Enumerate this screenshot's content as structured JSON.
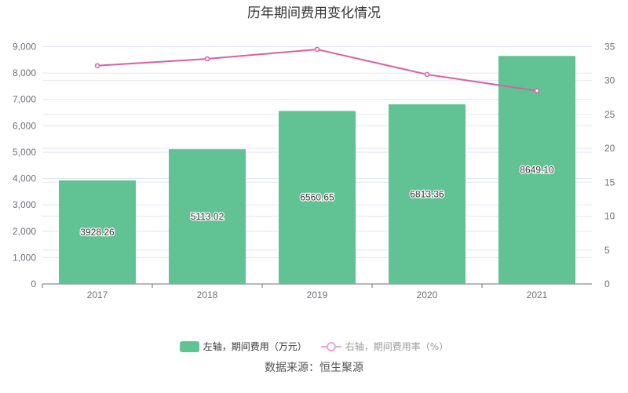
{
  "colors": {
    "bar": "#61c394",
    "line": "#d75fa8",
    "grid": "#e0e6f1",
    "axis_text": "#6e7079"
  },
  "chart_data": {
    "type": "bar+line",
    "title": "历年期间费用变化情况",
    "categories": [
      "2017",
      "2018",
      "2019",
      "2020",
      "2021"
    ],
    "series": [
      {
        "name": "左轴，期间费用（万元）",
        "type": "bar",
        "axis": "left",
        "values": [
          3928.26,
          5113.02,
          6560.65,
          6813.36,
          8649.1
        ],
        "labels": [
          "3928.26",
          "5113.02",
          "6560.65",
          "6813.36",
          "8649.10"
        ]
      },
      {
        "name": "右轴，期间费用率（%）",
        "type": "line",
        "axis": "right",
        "values": [
          32.2,
          33.2,
          34.6,
          30.9,
          28.5
        ]
      }
    ],
    "left_axis": {
      "ylim": [
        0,
        9000
      ],
      "ticks": [
        "0",
        "1,000",
        "2,000",
        "3,000",
        "4,000",
        "5,000",
        "6,000",
        "7,000",
        "8,000",
        "9,000"
      ]
    },
    "right_axis": {
      "ylim": [
        0,
        35
      ],
      "ticks": [
        "0",
        "5",
        "10",
        "15",
        "20",
        "25",
        "30",
        "35"
      ]
    },
    "grid": true,
    "legend": "bottom"
  },
  "legend": {
    "bar": "左轴，期间费用（万元）",
    "line": "右轴，期间费用率（%）"
  },
  "source": "数据来源：恒生聚源"
}
